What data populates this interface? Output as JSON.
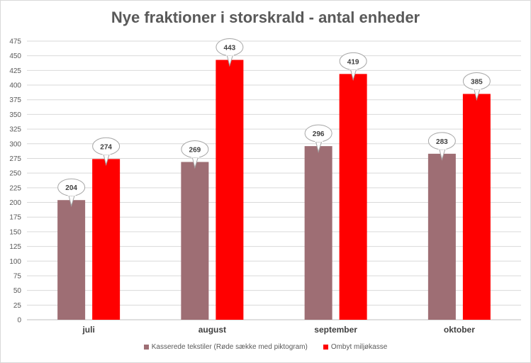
{
  "chart_data": {
    "type": "bar",
    "title": "Nye fraktioner i storskrald - antal enheder",
    "categories": [
      "juli",
      "august",
      "september",
      "oktober"
    ],
    "series": [
      {
        "name": "Kasserede tekstiler (Røde sække med piktogram)",
        "color": "#9e6e74",
        "values": [
          204,
          269,
          296,
          283
        ]
      },
      {
        "name": "Ombyt miljøkasse",
        "color": "#ff0000",
        "values": [
          274,
          443,
          419,
          385
        ]
      }
    ],
    "ylim": [
      0,
      475
    ],
    "yticks": [
      0,
      25,
      50,
      75,
      100,
      125,
      150,
      175,
      200,
      225,
      250,
      275,
      300,
      325,
      350,
      375,
      400,
      425,
      450,
      475
    ],
    "grid": true,
    "legend": "bottom",
    "data_labels": "callout"
  }
}
